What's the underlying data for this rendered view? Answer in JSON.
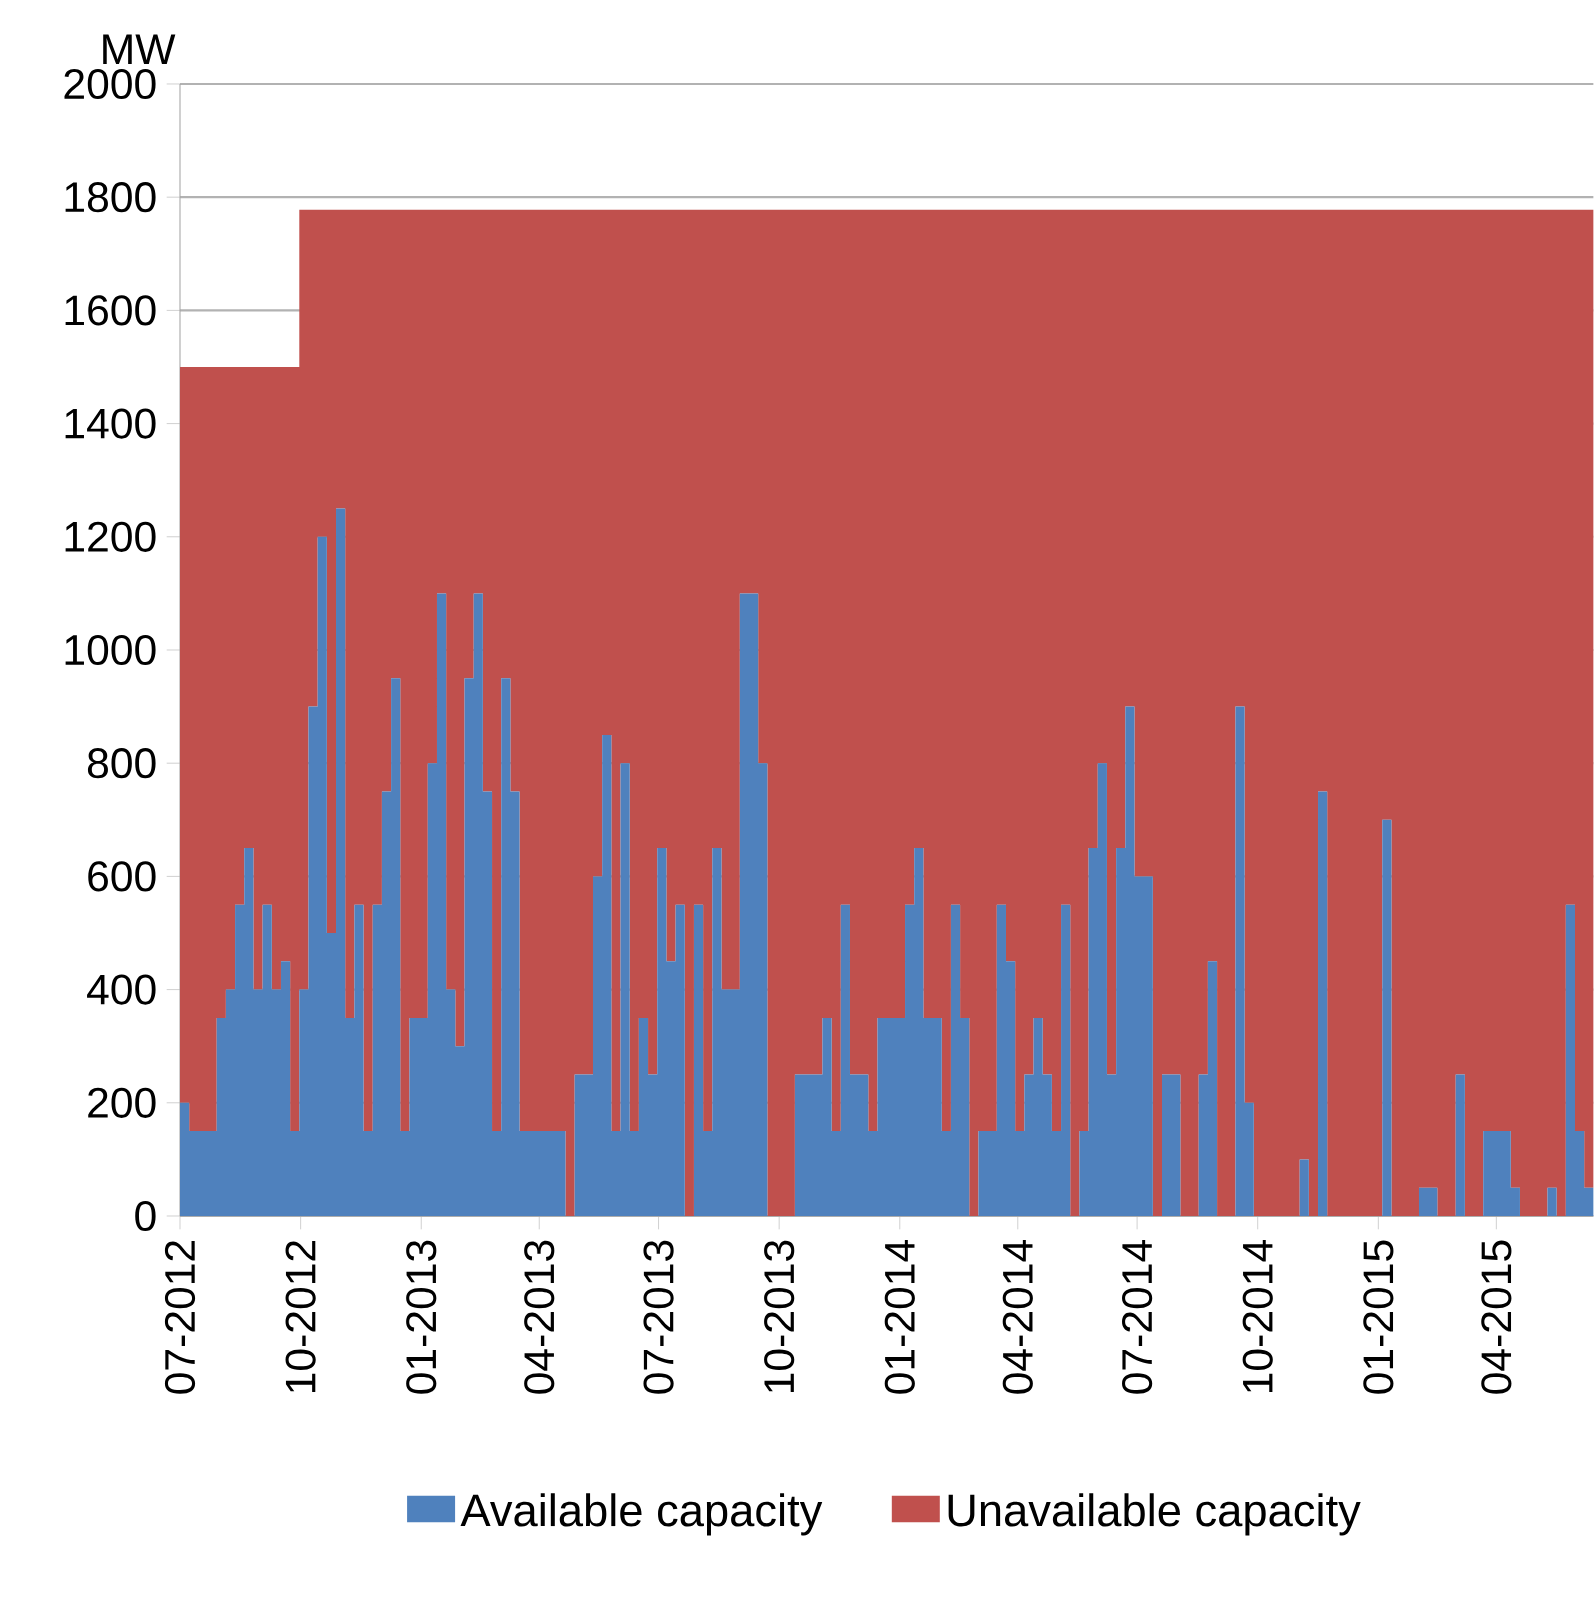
{
  "chart_data": {
    "type": "area",
    "stacked": true,
    "ylabel": "MW",
    "grid": "y",
    "legend": "bottom",
    "xlim": [
      "2012-07-01",
      "2015-06-14"
    ],
    "ylim": [
      0,
      2000
    ],
    "yticks": [
      0,
      200,
      400,
      600,
      800,
      1000,
      1200,
      1400,
      1600,
      1800,
      2000
    ],
    "xticks": [
      {
        "value": "2012-07-01",
        "label": "07-2012"
      },
      {
        "value": "2012-10-01",
        "label": "10-2012"
      },
      {
        "value": "2013-01-01",
        "label": "01-2013"
      },
      {
        "value": "2013-04-01",
        "label": "04-2013"
      },
      {
        "value": "2013-07-01",
        "label": "07-2013"
      },
      {
        "value": "2013-10-01",
        "label": "10-2013"
      },
      {
        "value": "2014-01-01",
        "label": "01-2014"
      },
      {
        "value": "2014-04-01",
        "label": "04-2014"
      },
      {
        "value": "2014-07-01",
        "label": "07-2014"
      },
      {
        "value": "2014-10-01",
        "label": "10-2014"
      },
      {
        "value": "2015-01-01",
        "label": "01-2015"
      },
      {
        "value": "2015-04-01",
        "label": "04-2015"
      }
    ],
    "x": [
      "2012-07-01",
      "2012-07-08",
      "2012-07-15",
      "2012-07-22",
      "2012-07-29",
      "2012-08-05",
      "2012-08-12",
      "2012-08-19",
      "2012-08-26",
      "2012-09-02",
      "2012-09-09",
      "2012-09-16",
      "2012-09-23",
      "2012-09-30",
      "2012-10-07",
      "2012-10-14",
      "2012-10-21",
      "2012-10-28",
      "2012-11-04",
      "2012-11-11",
      "2012-11-18",
      "2012-11-25",
      "2012-12-02",
      "2012-12-09",
      "2012-12-16",
      "2012-12-23",
      "2012-12-30",
      "2013-01-06",
      "2013-01-13",
      "2013-01-20",
      "2013-01-27",
      "2013-02-03",
      "2013-02-10",
      "2013-02-17",
      "2013-02-24",
      "2013-03-03",
      "2013-03-10",
      "2013-03-17",
      "2013-03-24",
      "2013-03-31",
      "2013-04-07",
      "2013-04-14",
      "2013-04-21",
      "2013-04-28",
      "2013-05-05",
      "2013-05-12",
      "2013-05-19",
      "2013-05-26",
      "2013-06-02",
      "2013-06-09",
      "2013-06-16",
      "2013-06-23",
      "2013-06-30",
      "2013-07-07",
      "2013-07-14",
      "2013-07-21",
      "2013-07-28",
      "2013-08-04",
      "2013-08-11",
      "2013-08-18",
      "2013-08-25",
      "2013-09-01",
      "2013-09-08",
      "2013-09-15",
      "2013-09-22",
      "2013-09-29",
      "2013-10-06",
      "2013-10-13",
      "2013-10-20",
      "2013-10-27",
      "2013-11-03",
      "2013-11-10",
      "2013-11-17",
      "2013-11-24",
      "2013-12-01",
      "2013-12-08",
      "2013-12-15",
      "2013-12-22",
      "2013-12-29",
      "2014-01-05",
      "2014-01-12",
      "2014-01-19",
      "2014-01-26",
      "2014-02-02",
      "2014-02-09",
      "2014-02-16",
      "2014-02-23",
      "2014-03-02",
      "2014-03-09",
      "2014-03-16",
      "2014-03-23",
      "2014-03-30",
      "2014-04-06",
      "2014-04-13",
      "2014-04-20",
      "2014-04-27",
      "2014-05-04",
      "2014-05-11",
      "2014-05-18",
      "2014-05-25",
      "2014-06-01",
      "2014-06-08",
      "2014-06-15",
      "2014-06-22",
      "2014-06-29",
      "2014-07-06",
      "2014-07-13",
      "2014-07-20",
      "2014-07-27",
      "2014-08-03",
      "2014-08-10",
      "2014-08-17",
      "2014-08-24",
      "2014-08-31",
      "2014-09-07",
      "2014-09-14",
      "2014-09-21",
      "2014-09-28",
      "2014-10-05",
      "2014-10-12",
      "2014-10-19",
      "2014-10-26",
      "2014-11-02",
      "2014-11-09",
      "2014-11-16",
      "2014-11-23",
      "2014-11-30",
      "2014-12-07",
      "2014-12-14",
      "2014-12-21",
      "2014-12-28",
      "2015-01-04",
      "2015-01-11",
      "2015-01-18",
      "2015-01-25",
      "2015-02-01",
      "2015-02-08",
      "2015-02-15",
      "2015-02-22",
      "2015-03-01",
      "2015-03-08",
      "2015-03-15",
      "2015-03-22",
      "2015-03-29",
      "2015-04-05",
      "2015-04-12",
      "2015-04-19",
      "2015-04-26",
      "2015-05-03",
      "2015-05-10",
      "2015-05-17",
      "2015-05-24",
      "2015-05-31",
      "2015-06-07",
      "2015-06-14"
    ],
    "series": [
      {
        "name": "Available capacity",
        "color": "#4f81bd",
        "values": [
          200,
          150,
          150,
          150,
          350,
          400,
          550,
          650,
          400,
          550,
          400,
          450,
          150,
          400,
          900,
          1200,
          500,
          1250,
          350,
          550,
          150,
          550,
          750,
          950,
          150,
          350,
          350,
          800,
          1100,
          400,
          300,
          950,
          1100,
          750,
          150,
          950,
          750,
          150,
          150,
          150,
          150,
          150,
          0,
          250,
          250,
          600,
          850,
          150,
          800,
          150,
          350,
          250,
          650,
          450,
          550,
          0,
          550,
          150,
          650,
          400,
          400,
          1100,
          1100,
          800,
          0,
          0,
          0,
          250,
          250,
          250,
          350,
          150,
          550,
          250,
          250,
          150,
          350,
          350,
          350,
          550,
          650,
          350,
          350,
          150,
          550,
          350,
          0,
          150,
          150,
          550,
          450,
          150,
          250,
          350,
          250,
          150,
          550,
          0,
          150,
          650,
          800,
          250,
          650,
          900,
          600,
          600,
          0,
          250,
          250,
          0,
          0,
          250,
          450,
          0,
          0,
          900,
          200,
          0,
          0,
          0,
          0,
          0,
          100,
          0,
          750,
          0,
          0,
          0,
          0,
          0,
          0,
          700,
          0,
          0,
          0,
          50,
          50,
          0,
          0,
          250,
          0,
          0,
          150,
          150,
          150,
          50,
          0,
          0,
          0,
          50,
          0,
          550,
          150,
          50,
          400
        ]
      },
      {
        "name": "Unavailable capacity",
        "color": "#c0504d",
        "values": [
          1300,
          1350,
          1350,
          1350,
          1150,
          1100,
          950,
          850,
          1100,
          950,
          1100,
          1050,
          1350,
          1378,
          878,
          578,
          1278,
          528,
          1428,
          1228,
          1628,
          1228,
          1028,
          828,
          1628,
          1428,
          1428,
          978,
          678,
          1378,
          1478,
          828,
          678,
          1028,
          1628,
          828,
          1028,
          1628,
          1628,
          1628,
          1628,
          1628,
          1778,
          1528,
          1528,
          1178,
          928,
          1628,
          978,
          1628,
          1428,
          1528,
          1128,
          1328,
          1228,
          1778,
          1228,
          1628,
          1128,
          1378,
          1378,
          678,
          678,
          978,
          1778,
          1778,
          1778,
          1528,
          1528,
          1528,
          1428,
          1628,
          1228,
          1528,
          1528,
          1628,
          1428,
          1428,
          1428,
          1228,
          1128,
          1428,
          1428,
          1628,
          1228,
          1428,
          1778,
          1628,
          1628,
          1228,
          1328,
          1628,
          1528,
          1428,
          1528,
          1628,
          1228,
          1778,
          1628,
          1128,
          978,
          1528,
          1128,
          878,
          1178,
          1178,
          1778,
          1528,
          1528,
          1778,
          1778,
          1528,
          1328,
          1778,
          1778,
          878,
          1578,
          1778,
          1778,
          1778,
          1778,
          1778,
          1678,
          1778,
          1028,
          1778,
          1778,
          1778,
          1778,
          1778,
          1778,
          1078,
          1778,
          1778,
          1778,
          1728,
          1728,
          1778,
          1778,
          1528,
          1778,
          1778,
          1628,
          1628,
          1628,
          1728,
          1778,
          1778,
          1778,
          1728,
          1778,
          1228,
          1628,
          1728,
          1378
        ]
      }
    ]
  }
}
